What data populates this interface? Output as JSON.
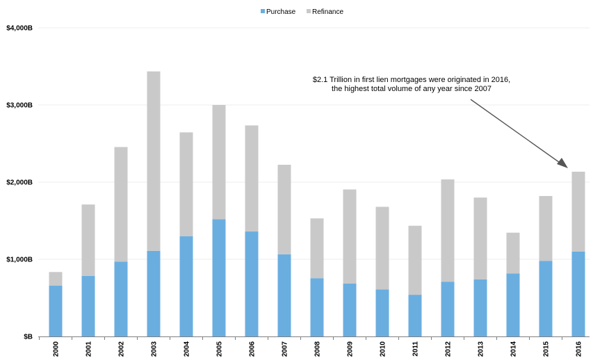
{
  "chart_data": {
    "type": "bar",
    "stacked": true,
    "title": "",
    "xlabel": "",
    "ylabel": "",
    "categories": [
      "2000",
      "2001",
      "2002",
      "2003",
      "2004",
      "2005",
      "2006",
      "2007",
      "2008",
      "2009",
      "2010",
      "2011",
      "2012",
      "2013",
      "2014",
      "2015",
      "2016"
    ],
    "series": [
      {
        "name": "Purchase",
        "color": "#6aaee0",
        "values": [
          660,
          785,
          970,
          1110,
          1300,
          1520,
          1360,
          1065,
          755,
          685,
          610,
          540,
          710,
          740,
          815,
          980,
          1100
        ]
      },
      {
        "name": "Refinance",
        "color": "#c9c9c9",
        "values": [
          175,
          925,
          1485,
          2325,
          1345,
          1480,
          1375,
          1160,
          775,
          1220,
          1070,
          895,
          1325,
          1060,
          530,
          840,
          1035
        ]
      }
    ],
    "ylim": [
      0,
      4000
    ],
    "yticks": [
      0,
      1000,
      2000,
      3000,
      4000
    ],
    "ytick_labels": [
      "$B",
      "$1,000B",
      "$2,000B",
      "$3,000B",
      "$4,000B"
    ],
    "grid": true,
    "legend": "top-center",
    "annotation": {
      "lines": [
        "$2.1 Trillion in first lien mortgages were originated in 2016,",
        "the highest total volume of any year since 2007"
      ],
      "points_to": "2016"
    }
  }
}
